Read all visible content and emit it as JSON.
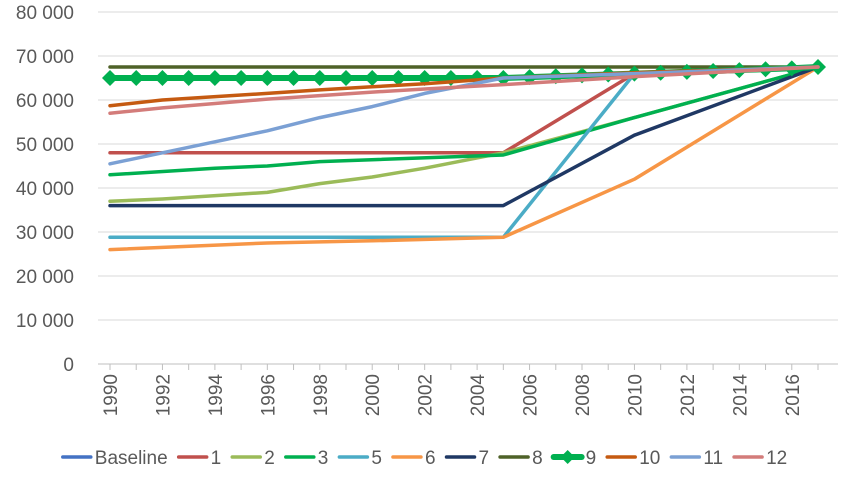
{
  "chart_data": {
    "type": "line",
    "title": "",
    "xlabel": "",
    "ylabel": "",
    "xlim": [
      1990,
      2017
    ],
    "ylim": [
      0,
      80000
    ],
    "y_ticks": [
      {
        "value": 0,
        "label": "0"
      },
      {
        "value": 10000,
        "label": "10 000"
      },
      {
        "value": 20000,
        "label": "20 000"
      },
      {
        "value": 30000,
        "label": "30 000"
      },
      {
        "value": 40000,
        "label": "40 000"
      },
      {
        "value": 50000,
        "label": "50 000"
      },
      {
        "value": 60000,
        "label": "60 000"
      },
      {
        "value": 70000,
        "label": "70 000"
      },
      {
        "value": 80000,
        "label": "80 000"
      }
    ],
    "x_ticks": [
      "1990",
      "1992",
      "1994",
      "1996",
      "1998",
      "2000",
      "2002",
      "2004",
      "2006",
      "2008",
      "2010",
      "2012",
      "2014",
      "2016"
    ],
    "grid": "horizontal",
    "legend_position": "bottom",
    "series": [
      {
        "name": "Baseline",
        "color": "#4472C4",
        "marker": "none",
        "points": []
      },
      {
        "name": "1",
        "color": "#C0504D",
        "marker": "none",
        "points": [
          [
            1990,
            48000
          ],
          [
            2005,
            48000
          ],
          [
            2010,
            66000
          ],
          [
            2017,
            67500
          ]
        ]
      },
      {
        "name": "2",
        "color": "#9BBB59",
        "marker": "none",
        "points": [
          [
            1990,
            37000
          ],
          [
            1992,
            37500
          ],
          [
            1996,
            39000
          ],
          [
            1998,
            41000
          ],
          [
            2000,
            42500
          ],
          [
            2002,
            44500
          ],
          [
            2005,
            48000
          ],
          [
            2010,
            56000
          ],
          [
            2017,
            67500
          ]
        ]
      },
      {
        "name": "3",
        "color": "#00B050",
        "marker": "none",
        "points": [
          [
            1990,
            43000
          ],
          [
            1994,
            44500
          ],
          [
            1996,
            45000
          ],
          [
            1998,
            46000
          ],
          [
            2005,
            47500
          ],
          [
            2010,
            56000
          ],
          [
            2017,
            67500
          ]
        ]
      },
      {
        "name": "5",
        "color": "#4BACC6",
        "marker": "none",
        "points": [
          [
            1990,
            28800
          ],
          [
            2005,
            28800
          ],
          [
            2010,
            66000
          ],
          [
            2017,
            67500
          ]
        ]
      },
      {
        "name": "6",
        "color": "#F79646",
        "marker": "none",
        "points": [
          [
            1990,
            26000
          ],
          [
            1996,
            27500
          ],
          [
            2000,
            28000
          ],
          [
            2005,
            28800
          ],
          [
            2010,
            42000
          ],
          [
            2017,
            67500
          ]
        ]
      },
      {
        "name": "7",
        "color": "#1F3864",
        "marker": "none",
        "points": [
          [
            1990,
            36000
          ],
          [
            2005,
            36000
          ],
          [
            2010,
            52000
          ],
          [
            2017,
            67500
          ]
        ]
      },
      {
        "name": "8",
        "color": "#4F6228",
        "marker": "none",
        "points": [
          [
            1990,
            67500
          ],
          [
            2017,
            67500
          ]
        ]
      },
      {
        "name": "9",
        "color": "#00B050",
        "marker": "diamond",
        "points": [
          [
            1990,
            65000
          ],
          [
            1991,
            65000
          ],
          [
            1992,
            65000
          ],
          [
            1993,
            65000
          ],
          [
            1994,
            65000
          ],
          [
            1995,
            65000
          ],
          [
            1996,
            65000
          ],
          [
            1997,
            65000
          ],
          [
            1998,
            65000
          ],
          [
            1999,
            65000
          ],
          [
            2000,
            65000
          ],
          [
            2001,
            65000
          ],
          [
            2002,
            65000
          ],
          [
            2003,
            65000
          ],
          [
            2004,
            65000
          ],
          [
            2005,
            65000
          ],
          [
            2006,
            65200
          ],
          [
            2007,
            65400
          ],
          [
            2008,
            65600
          ],
          [
            2009,
            65800
          ],
          [
            2010,
            66000
          ],
          [
            2011,
            66200
          ],
          [
            2012,
            66400
          ],
          [
            2013,
            66600
          ],
          [
            2014,
            66800
          ],
          [
            2015,
            67000
          ],
          [
            2016,
            67200
          ],
          [
            2017,
            67500
          ]
        ]
      },
      {
        "name": "10",
        "color": "#C55A11",
        "marker": "none",
        "points": [
          [
            1990,
            58700
          ],
          [
            1992,
            60000
          ],
          [
            1996,
            61500
          ],
          [
            1998,
            62300
          ],
          [
            2000,
            63000
          ],
          [
            2002,
            63700
          ],
          [
            2005,
            65000
          ],
          [
            2010,
            66200
          ],
          [
            2017,
            67500
          ]
        ]
      },
      {
        "name": "11",
        "color": "#7BA0D4",
        "marker": "none",
        "points": [
          [
            1990,
            45500
          ],
          [
            1992,
            48000
          ],
          [
            1994,
            50500
          ],
          [
            1996,
            53000
          ],
          [
            1998,
            56000
          ],
          [
            2000,
            58500
          ],
          [
            2002,
            61500
          ],
          [
            2005,
            65000
          ],
          [
            2010,
            66000
          ],
          [
            2017,
            67500
          ]
        ]
      },
      {
        "name": "12",
        "color": "#D37C7A",
        "marker": "none",
        "points": [
          [
            1990,
            57000
          ],
          [
            1992,
            58200
          ],
          [
            1994,
            59200
          ],
          [
            1996,
            60200
          ],
          [
            1998,
            61000
          ],
          [
            2000,
            61800
          ],
          [
            2002,
            62500
          ],
          [
            2005,
            63500
          ],
          [
            2010,
            65300
          ],
          [
            2017,
            67500
          ]
        ]
      }
    ]
  }
}
